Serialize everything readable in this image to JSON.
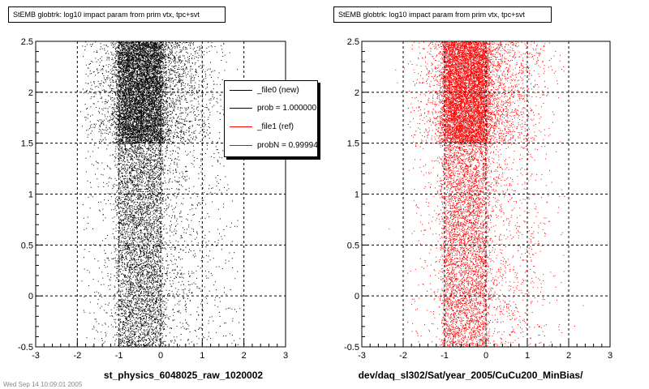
{
  "chart_data": [
    {
      "type": "scatter",
      "title": "StEMB globtrk: log10 impact param from prim vtx, tpc+svt",
      "xlabel": "st_physics_6048025_raw_1020002",
      "ylabel": "",
      "xlim": [
        -3,
        3
      ],
      "ylim": [
        -0.5,
        2.5
      ],
      "xticks": [
        "-3",
        "-2",
        "-1",
        "0",
        "1",
        "2",
        "3"
      ],
      "yticks": [
        "-0.5",
        "0",
        "0.5",
        "1",
        "1.5",
        "2",
        "2.5"
      ],
      "grid": true,
      "marker_color": "#000000",
      "distribution": {
        "x_core": [
          -1,
          0
        ],
        "x_extent": [
          -1.9,
          1.9
        ],
        "dense_y_band": [
          1.5,
          2.5
        ]
      },
      "legend": {
        "placement": "top-right",
        "entries": [
          {
            "label": "_file0 (new)",
            "color": "#000000"
          },
          {
            "label": "prob = 1.000000",
            "color": "#000000"
          },
          {
            "label": "_file1 (ref)",
            "color": "#ff0000"
          },
          {
            "label": "probN = 0.999940",
            "color": "#ff0000"
          }
        ]
      }
    },
    {
      "type": "scatter",
      "title": "StEMB globtrk: log10 impact param from prim vtx, tpc+svt",
      "xlabel": "dev/daq_sl302/Sat/year_2005/CuCu200_MinBias/",
      "ylabel": "",
      "xlim": [
        -3,
        3
      ],
      "ylim": [
        -0.5,
        2.5
      ],
      "xticks": [
        "-3",
        "-2",
        "-1",
        "0",
        "1",
        "2",
        "3"
      ],
      "yticks": [
        "-0.5",
        "0",
        "0.5",
        "1",
        "1.5",
        "2",
        "2.5"
      ],
      "grid": true,
      "marker_color": "#ff0000",
      "distribution": {
        "x_core": [
          -1,
          0
        ],
        "x_extent": [
          -1.9,
          1.9
        ],
        "dense_y_band": [
          1.5,
          2.5
        ]
      }
    }
  ],
  "footer": "Wed Sep 14 10:09:01 2005"
}
